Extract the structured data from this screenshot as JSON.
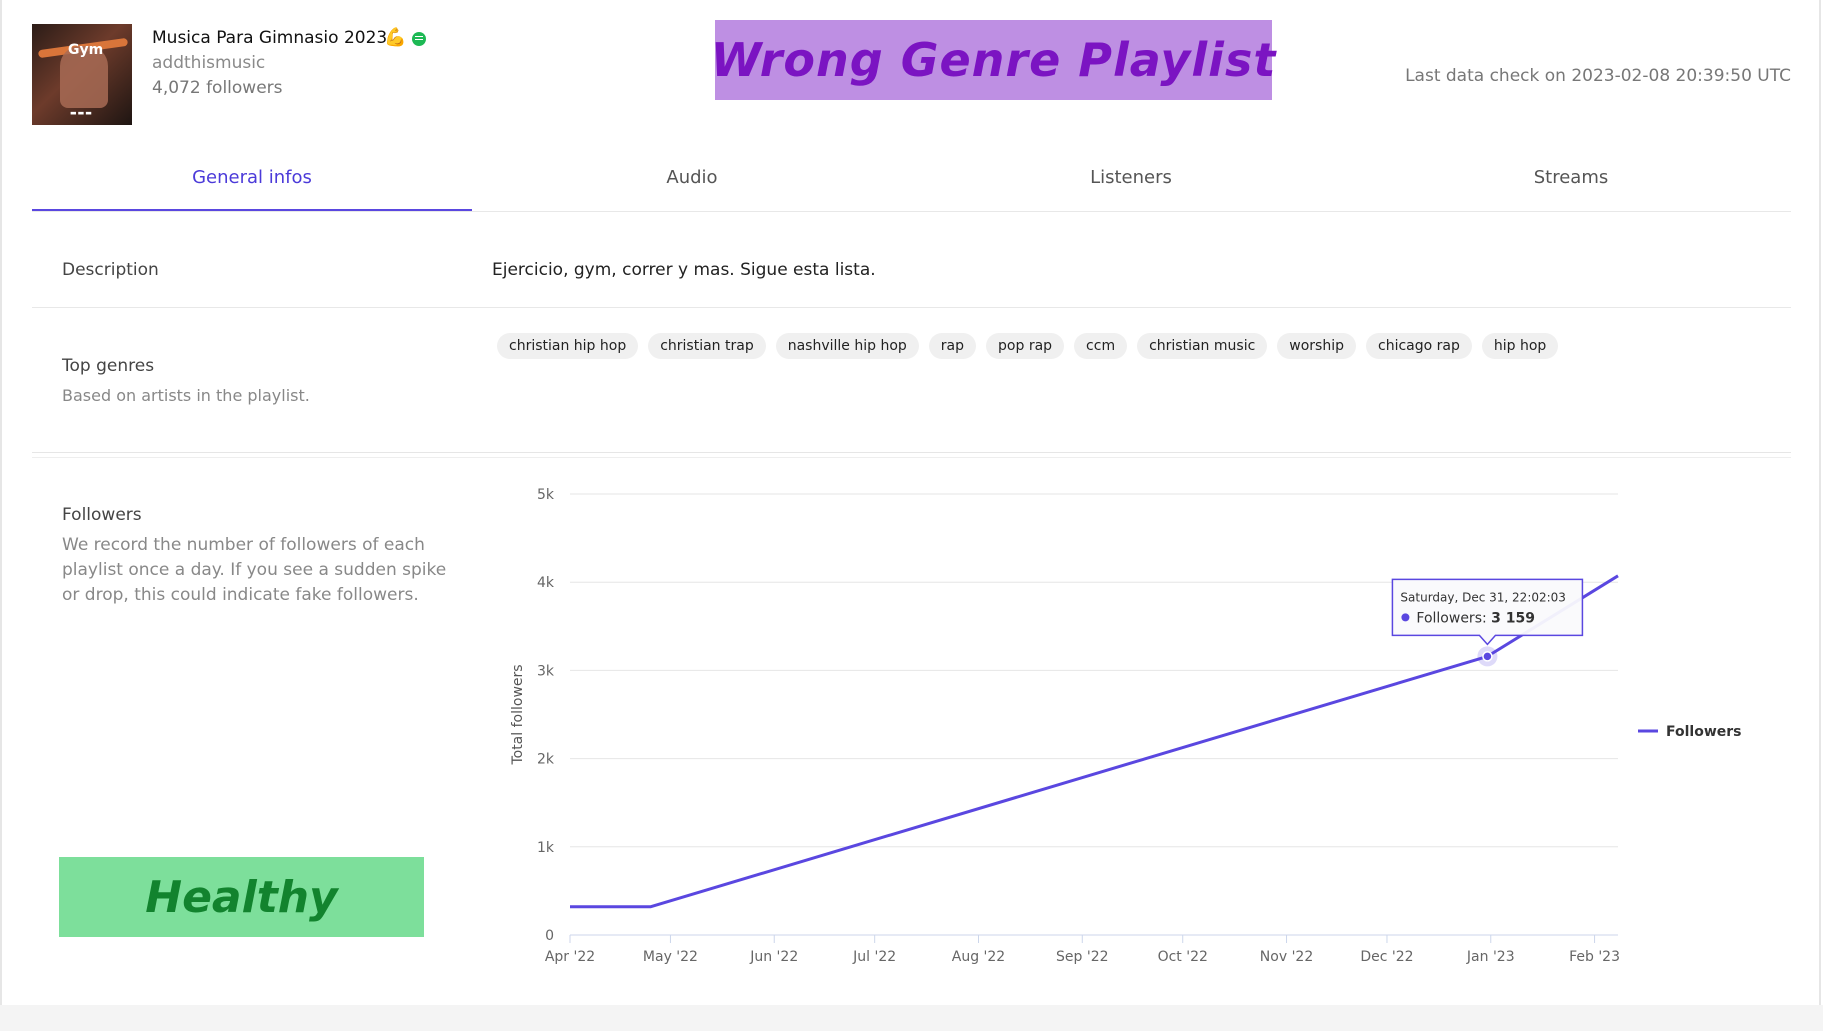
{
  "playlist": {
    "title": "Musica Para Gimnasio 2023",
    "title_emoji": "💪",
    "owner": "addthismusic",
    "followers": "4,072 followers",
    "cover_text": "Gym"
  },
  "banners": {
    "wrong_genre": "Wrong Genre Playlist",
    "healthy": "Healthy"
  },
  "last_check": "Last data check on 2023-02-08 20:39:50 UTC",
  "tabs": [
    {
      "label": "General infos",
      "active": true
    },
    {
      "label": "Audio"
    },
    {
      "label": "Listeners"
    },
    {
      "label": "Streams"
    }
  ],
  "description": {
    "label": "Description",
    "text": "Ejercicio, gym, correr y mas. Sigue esta lista."
  },
  "genres": {
    "label": "Top genres",
    "sub": "Based on artists in the playlist.",
    "items": [
      "christian hip hop",
      "christian trap",
      "nashville hip hop",
      "rap",
      "pop rap",
      "ccm",
      "christian music",
      "worship",
      "chicago rap",
      "hip hop"
    ]
  },
  "followers_section": {
    "label": "Followers",
    "desc": "We record the number of followers of each playlist once a day. If you see a sudden spike or drop, this could indicate fake followers."
  },
  "colors": {
    "accent": "#5a47e0",
    "wrong_genre_bg": "#be8fe3",
    "wrong_genre_text": "#7b14c2",
    "healthy_bg": "#7ddf9b",
    "healthy_text": "#12832e",
    "spotify": "#1db954"
  },
  "chart_data": {
    "type": "line",
    "ylabel": "Total followers",
    "ylim": [
      0,
      5000
    ],
    "yticks": [
      "0",
      "1k",
      "2k",
      "3k",
      "4k",
      "5k"
    ],
    "xticks": [
      "Apr '22",
      "May '22",
      "Jun '22",
      "Jul '22",
      "Aug '22",
      "Sep '22",
      "Oct '22",
      "Nov '22",
      "Dec '22",
      "Jan '23",
      "Feb '23"
    ],
    "x_domain": [
      "2022-04-01",
      "2023-02-08"
    ],
    "grid": true,
    "legend_position": "right",
    "series": [
      {
        "name": "Followers",
        "points": [
          {
            "x": "2022-04-01",
            "y": 320
          },
          {
            "x": "2022-04-25",
            "y": 320
          },
          {
            "x": "2022-12-31",
            "y": 3159
          },
          {
            "x": "2023-02-08",
            "y": 4072
          }
        ]
      }
    ],
    "tooltip": {
      "date": "Saturday, Dec 31, 22:02:03",
      "label": "Followers:",
      "value": "3 159",
      "x": "2022-12-31",
      "y": 3159
    }
  }
}
